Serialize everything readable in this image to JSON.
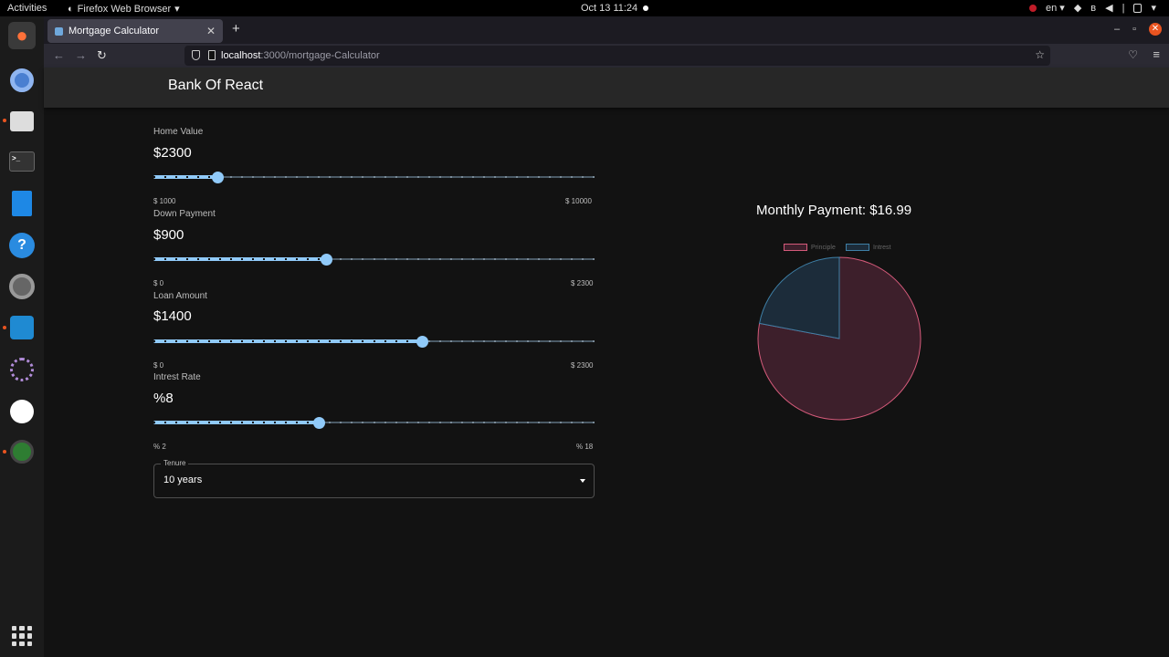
{
  "os": {
    "activities": "Activities",
    "app_name": "Firefox Web Browser",
    "clock": "Oct 13  11:24",
    "lang": "en"
  },
  "browser": {
    "tab_title": "Mortgage Calculator",
    "url_host": "localhost",
    "url_path": ":3000/mortgage-Calculator"
  },
  "app": {
    "brand": "Bank Of React",
    "sliders": [
      {
        "label": "Home Value",
        "value_text": "$2300",
        "min_text": "$ 1000",
        "max_text": "$ 10000",
        "min": 1000,
        "max": 10000,
        "value": 2300
      },
      {
        "label": "Down Payment",
        "value_text": "$900",
        "min_text": "$ 0",
        "max_text": "$ 2300",
        "min": 0,
        "max": 2300,
        "value": 900
      },
      {
        "label": "Loan Amount",
        "value_text": "$1400",
        "min_text": "$ 0",
        "max_text": "$ 2300",
        "min": 0,
        "max": 2300,
        "value": 1400
      },
      {
        "label": "Intrest Rate",
        "value_text": "%8",
        "min_text": "% 2",
        "max_text": "% 18",
        "min": 2,
        "max": 18,
        "value": 8
      }
    ],
    "tenure": {
      "label": "Tenure",
      "value": "10 years"
    },
    "monthly_payment": "Monthly Payment: $16.99"
  },
  "chart_data": {
    "type": "pie",
    "categories": [
      "Principle",
      "Intrest"
    ],
    "values": [
      78,
      22
    ],
    "colors": [
      "#3d1f2b",
      "#1c2c3a"
    ],
    "border_colors": [
      "#d45a7a",
      "#3e7fa6"
    ],
    "legend": "top"
  }
}
